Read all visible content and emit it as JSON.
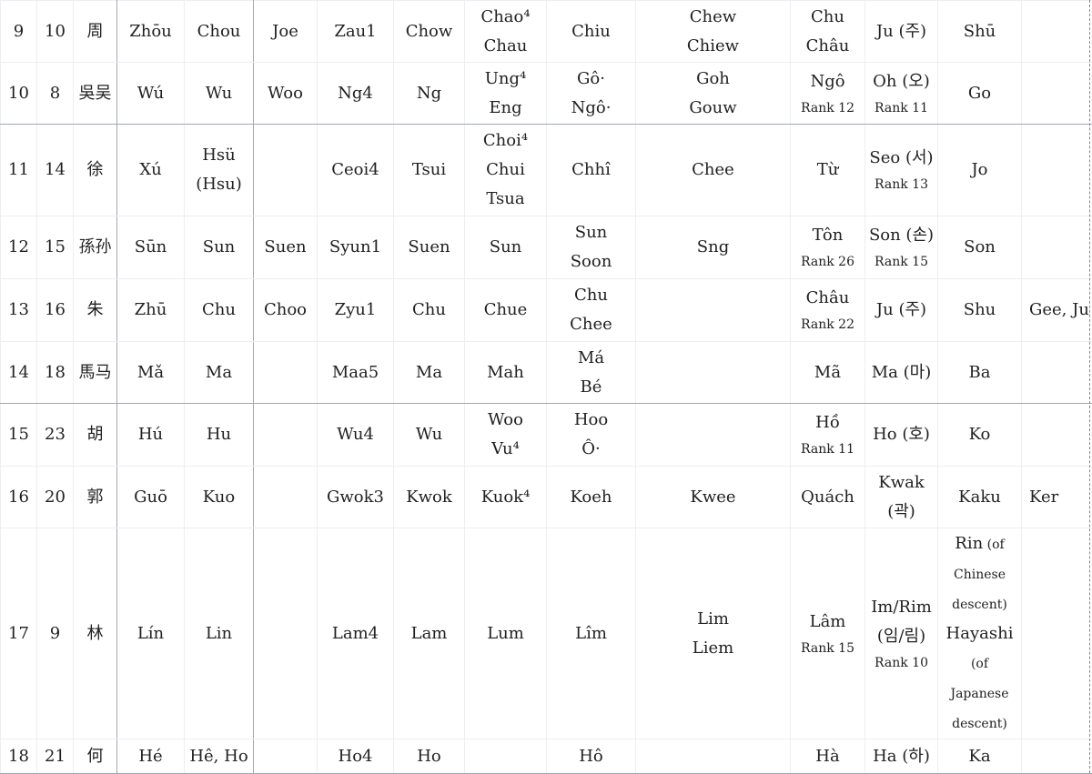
{
  "rows": [
    {
      "cells": [
        [
          "9"
        ],
        [
          "10"
        ],
        [
          "周"
        ],
        [
          "Zhōu"
        ],
        [
          "Chou"
        ],
        [
          "Joe"
        ],
        [
          "Zau1"
        ],
        [
          "Chow"
        ],
        [
          "Chao⁴",
          "Chau"
        ],
        [
          "Chiu"
        ],
        [
          "Chew",
          "Chiew"
        ],
        [
          "Chu",
          "Châu"
        ],
        [
          "Ju (주)"
        ],
        [
          "Shū"
        ],
        []
      ]
    },
    {
      "cells": [
        [
          "10"
        ],
        [
          "8"
        ],
        [
          "吳吴"
        ],
        [
          "Wú"
        ],
        [
          "Wu"
        ],
        [
          "Woo"
        ],
        [
          "Ng4"
        ],
        [
          "Ng"
        ],
        [
          "Ung⁴",
          "Eng"
        ],
        [
          "Gô·",
          "Ngô·"
        ],
        [
          "Goh",
          "Gouw"
        ],
        [
          "Ngô",
          {
            "rank": "Rank 12"
          }
        ],
        [
          "Oh (오)",
          {
            "rank": "Rank 11"
          }
        ],
        [
          "Go"
        ],
        []
      ]
    },
    {
      "cells": [
        [
          "11"
        ],
        [
          "14"
        ],
        [
          "徐"
        ],
        [
          "Xú"
        ],
        [
          "Hsü",
          "(Hsu)"
        ],
        [],
        [
          "Ceoi4"
        ],
        [
          "Tsui"
        ],
        [
          "Choi⁴",
          "Chui",
          "Tsua"
        ],
        [
          "Chhî"
        ],
        [
          "Chee"
        ],
        [
          "Từ"
        ],
        [
          "Seo (서)",
          {
            "rank": "Rank 13"
          }
        ],
        [
          "Jo"
        ],
        []
      ]
    },
    {
      "cells": [
        [
          "12"
        ],
        [
          "15"
        ],
        [
          "孫孙"
        ],
        [
          "Sūn"
        ],
        [
          "Sun"
        ],
        [
          "Suen"
        ],
        [
          "Syun1"
        ],
        [
          "Suen"
        ],
        [
          "Sun"
        ],
        [
          "Sun",
          "Soon"
        ],
        [
          "Sng"
        ],
        [
          "Tôn",
          {
            "rank": "Rank 26"
          }
        ],
        [
          "Son (손)",
          {
            "rank": "Rank 15"
          }
        ],
        [
          "Son"
        ],
        []
      ]
    },
    {
      "cells": [
        [
          "13"
        ],
        [
          "16"
        ],
        [
          "朱"
        ],
        [
          "Zhū"
        ],
        [
          "Chu"
        ],
        [
          "Choo"
        ],
        [
          "Zyu1"
        ],
        [
          "Chu"
        ],
        [
          "Chue"
        ],
        [
          "Chu",
          "Chee"
        ],
        [],
        [
          "Châu",
          {
            "rank": "Rank 22"
          }
        ],
        [
          "Ju (주)"
        ],
        [
          "Shu"
        ],
        [
          "Gee, Ju"
        ]
      ]
    },
    {
      "cells": [
        [
          "14"
        ],
        [
          "18"
        ],
        [
          "馬马"
        ],
        [
          "Mǎ"
        ],
        [
          "Ma"
        ],
        [],
        [
          "Maa5"
        ],
        [
          "Ma"
        ],
        [
          "Mah"
        ],
        [
          "Má",
          "Bé"
        ],
        [],
        [
          "Mã"
        ],
        [
          "Ma (마)"
        ],
        [
          "Ba"
        ],
        []
      ]
    },
    {
      "cells": [
        [
          "15"
        ],
        [
          "23"
        ],
        [
          "胡"
        ],
        [
          "Hú"
        ],
        [
          "Hu"
        ],
        [],
        [
          "Wu4"
        ],
        [
          "Wu"
        ],
        [
          "Woo",
          "Vu⁴"
        ],
        [
          "Hoo",
          "Ô·"
        ],
        [],
        [
          "Hồ",
          {
            "rank": "Rank 11"
          }
        ],
        [
          "Ho (호)"
        ],
        [
          "Ko"
        ],
        []
      ]
    },
    {
      "cells": [
        [
          "16"
        ],
        [
          "20"
        ],
        [
          "郭"
        ],
        [
          "Guō"
        ],
        [
          "Kuo"
        ],
        [],
        [
          "Gwok3"
        ],
        [
          "Kwok"
        ],
        [
          "Kuok⁴"
        ],
        [
          "Koeh"
        ],
        [
          "Kwee"
        ],
        [
          "Quách"
        ],
        [
          "Kwak",
          "(곽)"
        ],
        [
          "Kaku"
        ],
        [
          "Ker"
        ]
      ]
    },
    {
      "cells": [
        [
          "17"
        ],
        [
          "9"
        ],
        [
          "林"
        ],
        [
          "Lín"
        ],
        [
          "Lin"
        ],
        [],
        [
          "Lam4"
        ],
        [
          "Lam"
        ],
        [
          "Lum"
        ],
        [
          "Lîm"
        ],
        [
          "Lim",
          "Liem"
        ],
        [
          "Lâm",
          {
            "rank": "Rank 15"
          }
        ],
        [
          "Im/Rim",
          "(임/림)",
          {
            "rank": "Rank 10"
          }
        ],
        [
          {
            "text": "Rin",
            "small": " (of"
          },
          {
            "small": "Chinese"
          },
          {
            "small": "descent)"
          },
          "Hayashi",
          {
            "small": "(of"
          },
          {
            "small": "Japanese"
          },
          {
            "small": "descent)"
          }
        ],
        []
      ]
    },
    {
      "cells": [
        [
          "18"
        ],
        [
          "21"
        ],
        [
          "何"
        ],
        [
          "Hé"
        ],
        [
          "Hê, Ho"
        ],
        [],
        [
          "Ho4"
        ],
        [
          "Ho"
        ],
        [],
        [
          "Hô"
        ],
        [],
        [
          "Hà"
        ],
        [
          "Ha (하)"
        ],
        [
          "Ka"
        ],
        []
      ]
    }
  ]
}
